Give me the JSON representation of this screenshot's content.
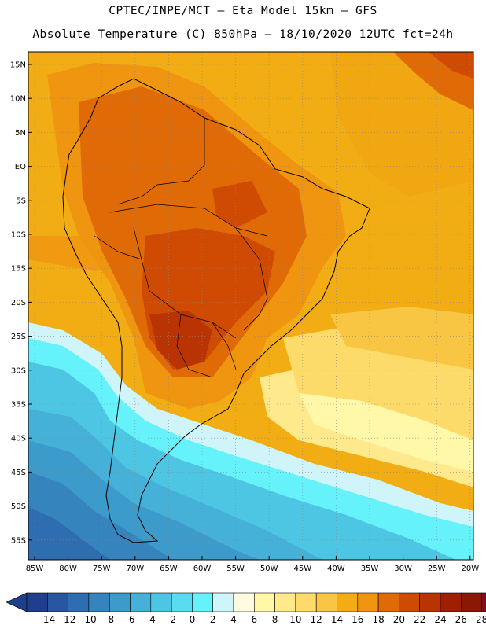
{
  "header": {
    "line1": "CPTEC/INPE/MCT —  Eta Model 15km — GFS",
    "line2": "Absolute Temperature (C) 850hPa — 18/10/2020 12UTC fct=24h"
  },
  "map": {
    "lat_labels": [
      "15N",
      "10N",
      "5N",
      "EQ",
      "5S",
      "10S",
      "15S",
      "20S",
      "25S",
      "30S",
      "35S",
      "40S",
      "45S",
      "50S",
      "55S"
    ],
    "lon_labels": [
      "85W",
      "80W",
      "75W",
      "70W",
      "65W",
      "60W",
      "55W",
      "50W",
      "45W",
      "40W",
      "35W",
      "30W",
      "25W",
      "20W"
    ]
  },
  "colorbar": {
    "levels": [
      "-14",
      "-12",
      "-10",
      "-8",
      "-6",
      "-4",
      "-2",
      "0",
      "2",
      "4",
      "6",
      "8",
      "10",
      "12",
      "14",
      "16",
      "18",
      "20",
      "22",
      "24",
      "26",
      "28"
    ],
    "colors": [
      "#1f3f8c",
      "#28569f",
      "#2e6db0",
      "#3584be",
      "#3d9bcc",
      "#45b1d9",
      "#4dc6e4",
      "#58dcee",
      "#66f2fa",
      "#cff5fb",
      "#fffbe0",
      "#fff8a8",
      "#fee98d",
      "#fddb6b",
      "#f9c643",
      "#f2ad14",
      "#f09510",
      "#e06a05",
      "#cf4a03",
      "#b93402",
      "#a01e02",
      "#8a1805",
      "#7d0f24"
    ],
    "left_arrow_color": "#1f3f8c",
    "right_arrow_color": "#7d0f24"
  }
}
